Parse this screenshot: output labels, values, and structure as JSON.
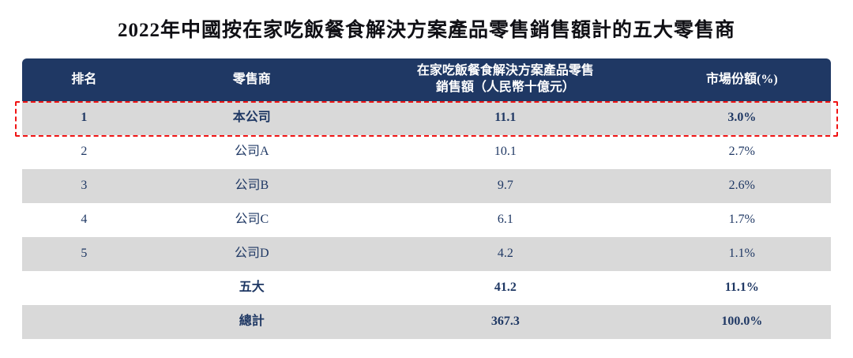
{
  "chart_data": {
    "type": "table",
    "title": "2022年中國按在家吃飯餐食解決方案產品零售銷售額計的五大零售商",
    "columns": [
      "排名",
      "零售商",
      "在家吃飯餐食解決方案產品零售銷售額（人民幣十億元）",
      "市場份額(%)"
    ],
    "rows": [
      [
        "1",
        "本公司",
        "11.1",
        "3.0%"
      ],
      [
        "2",
        "公司A",
        "10.1",
        "2.7%"
      ],
      [
        "3",
        "公司B",
        "9.7",
        "2.6%"
      ],
      [
        "4",
        "公司C",
        "6.1",
        "1.7%"
      ],
      [
        "5",
        "公司D",
        "4.2",
        "1.1%"
      ],
      [
        "",
        "五大",
        "41.2",
        "11.1%"
      ],
      [
        "",
        "總計",
        "367.3",
        "100.0%"
      ]
    ],
    "highlighted_row_index": 0,
    "layout": {
      "row_striping": "gray-white alternating starting gray",
      "header_style": "white bold text on dark navy"
    }
  },
  "colors": {
    "header_bg": "#1F3864",
    "body_text": "#1F3864",
    "stripe_gray": "#D9D9D9",
    "highlight_border": "#F01414",
    "title_text": "#101015"
  }
}
